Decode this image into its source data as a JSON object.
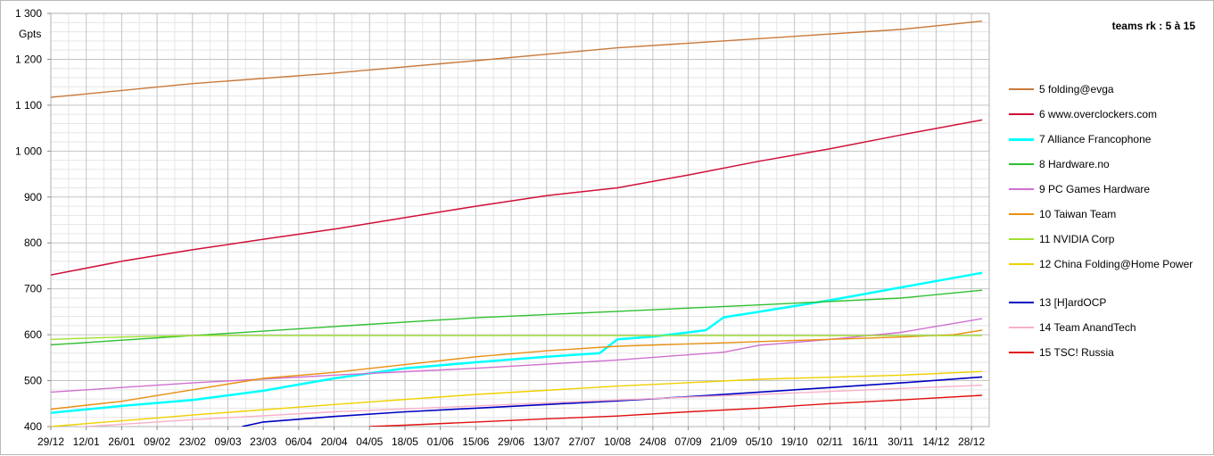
{
  "chart_data": {
    "type": "line",
    "title": "teams rk : 5 à 15",
    "ylabel": "Gpts",
    "xlabel": "",
    "ylim": [
      400,
      1300
    ],
    "y_ticks": [
      "400",
      "500",
      "600",
      "700",
      "800",
      "900",
      "1 000",
      "1 100",
      "1 200",
      "1 300"
    ],
    "x_ticks": [
      "29/12",
      "12/01",
      "26/01",
      "09/02",
      "23/02",
      "09/03",
      "23/03",
      "06/04",
      "20/04",
      "04/05",
      "18/05",
      "01/06",
      "15/06",
      "29/06",
      "13/07",
      "27/07",
      "10/08",
      "24/08",
      "07/09",
      "21/09",
      "05/10",
      "19/10",
      "02/11",
      "16/11",
      "30/11",
      "14/12",
      "28/12"
    ],
    "grid": true,
    "legend_position": "right",
    "x_index_range": [
      0,
      26.3
    ],
    "series": [
      {
        "name": "5 folding@evga",
        "color": "#c87a3c",
        "width": 1.4,
        "points": [
          [
            0,
            1117
          ],
          [
            4,
            1147
          ],
          [
            8,
            1170
          ],
          [
            12,
            1197
          ],
          [
            16,
            1225
          ],
          [
            20,
            1245
          ],
          [
            24,
            1265
          ],
          [
            26.3,
            1283
          ]
        ]
      },
      {
        "name": "6 www.overclockers.com",
        "color": "#d0103a",
        "width": 1.5,
        "points": [
          [
            0,
            730
          ],
          [
            2,
            760
          ],
          [
            4,
            785
          ],
          [
            6,
            808
          ],
          [
            8,
            830
          ],
          [
            10,
            855
          ],
          [
            12,
            880
          ],
          [
            14,
            903
          ],
          [
            16,
            920
          ],
          [
            18,
            948
          ],
          [
            20,
            978
          ],
          [
            22,
            1005
          ],
          [
            24,
            1035
          ],
          [
            26.3,
            1068
          ]
        ]
      },
      {
        "name": "7 Alliance Francophone",
        "color": "#00ffff",
        "width": 2.5,
        "points": [
          [
            0,
            430
          ],
          [
            2,
            445
          ],
          [
            4,
            458
          ],
          [
            6,
            478
          ],
          [
            8,
            505
          ],
          [
            10,
            527
          ],
          [
            12,
            540
          ],
          [
            14,
            552
          ],
          [
            15.5,
            560
          ],
          [
            16,
            590
          ],
          [
            17,
            596
          ],
          [
            18,
            605
          ],
          [
            18.5,
            610
          ],
          [
            19,
            638
          ],
          [
            20,
            650
          ],
          [
            22,
            675
          ],
          [
            24,
            703
          ],
          [
            26.3,
            735
          ]
        ]
      },
      {
        "name": "8 Hardware.no",
        "color": "#30c030",
        "width": 1.4,
        "points": [
          [
            0,
            578
          ],
          [
            4,
            598
          ],
          [
            8,
            618
          ],
          [
            12,
            637
          ],
          [
            16,
            651
          ],
          [
            20,
            665
          ],
          [
            24,
            680
          ],
          [
            26.3,
            697
          ]
        ]
      },
      {
        "name": "9 PC Games Hardware",
        "color": "#d070d0",
        "width": 1.4,
        "points": [
          [
            0,
            475
          ],
          [
            4,
            495
          ],
          [
            8,
            512
          ],
          [
            12,
            527
          ],
          [
            16,
            545
          ],
          [
            19,
            562
          ],
          [
            20,
            577
          ],
          [
            22,
            590
          ],
          [
            24,
            605
          ],
          [
            26.3,
            635
          ]
        ]
      },
      {
        "name": "10 Taiwan Team",
        "color": "#e89010",
        "width": 1.4,
        "points": [
          [
            0,
            438
          ],
          [
            2,
            455
          ],
          [
            4,
            480
          ],
          [
            6,
            505
          ],
          [
            8,
            518
          ],
          [
            10,
            535
          ],
          [
            12,
            552
          ],
          [
            14,
            565
          ],
          [
            16,
            575
          ],
          [
            18,
            580
          ],
          [
            20,
            585
          ],
          [
            22,
            590
          ],
          [
            24,
            595
          ],
          [
            25.5,
            600
          ],
          [
            26.3,
            610
          ]
        ]
      },
      {
        "name": "11 NVIDIA Corp",
        "color": "#a0e030",
        "width": 1.4,
        "points": [
          [
            0,
            590
          ],
          [
            2,
            595
          ],
          [
            4,
            598
          ],
          [
            8,
            598
          ],
          [
            12,
            598
          ],
          [
            16,
            598
          ],
          [
            20,
            598
          ],
          [
            24,
            598
          ],
          [
            26.3,
            598
          ]
        ]
      },
      {
        "name": "12 China Folding@Home Power",
        "color": "#f0d000",
        "width": 1.4,
        "points": [
          [
            0,
            400
          ],
          [
            4,
            425
          ],
          [
            8,
            448
          ],
          [
            12,
            470
          ],
          [
            16,
            488
          ],
          [
            20,
            503
          ],
          [
            24,
            512
          ],
          [
            26.3,
            520
          ]
        ]
      },
      {
        "name": "13 [H]ardOCP",
        "color": "#0000c0",
        "width": 1.6,
        "points": [
          [
            5.4,
            400
          ],
          [
            6,
            410
          ],
          [
            8,
            422
          ],
          [
            10,
            432
          ],
          [
            12,
            440
          ],
          [
            14,
            448
          ],
          [
            16,
            456
          ],
          [
            18,
            465
          ],
          [
            20,
            475
          ],
          [
            22,
            485
          ],
          [
            24,
            495
          ],
          [
            26.3,
            508
          ]
        ]
      },
      {
        "name": "14 Team AnandTech",
        "color": "#f8b0c8",
        "width": 1.4,
        "points": [
          [
            0,
            395
          ],
          [
            4,
            415
          ],
          [
            8,
            432
          ],
          [
            12,
            445
          ],
          [
            16,
            458
          ],
          [
            20,
            470
          ],
          [
            24,
            483
          ],
          [
            26.3,
            490
          ]
        ]
      },
      {
        "name": "15 TSC! Russia",
        "color": "#e01010",
        "width": 1.4,
        "points": [
          [
            9,
            400
          ],
          [
            10,
            403
          ],
          [
            12,
            410
          ],
          [
            14,
            417
          ],
          [
            16,
            423
          ],
          [
            18,
            432
          ],
          [
            20,
            440
          ],
          [
            22,
            450
          ],
          [
            24,
            458
          ],
          [
            26.3,
            468
          ]
        ]
      }
    ]
  }
}
